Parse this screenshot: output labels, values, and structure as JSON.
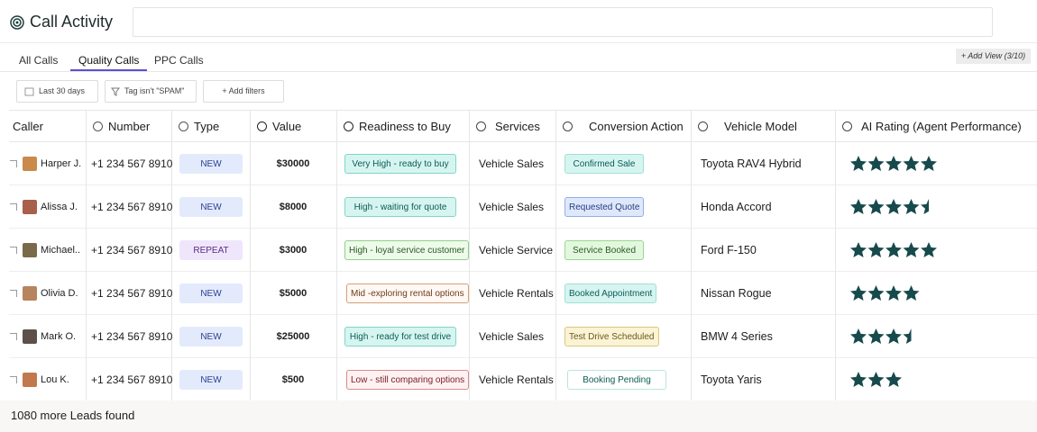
{
  "header": {
    "title": "Call Activity"
  },
  "tabs": [
    {
      "label": "All Calls",
      "active": false
    },
    {
      "label": "Quality Calls",
      "active": true
    },
    {
      "label": "PPC Calls",
      "active": false
    }
  ],
  "add_view": "+ Add View (3/10)",
  "filters": [
    "Last 30 days",
    "Tag isn't \"SPAM\"",
    "+ Add filters"
  ],
  "table": {
    "columns": [
      "Caller",
      "Number",
      "Type",
      "Value",
      "Readiness to Buy",
      "Services",
      "Conversion Action",
      "Vehicle Model",
      "AI Rating (Agent Performance)"
    ],
    "rows": [
      {
        "caller": "Harper J.",
        "number": "+1 234 567 8910",
        "type": "NEW",
        "value": "$30000",
        "readiness": "Very High - ready to buy",
        "service": "Vehicle Sales",
        "conversion": "Confirmed Sale",
        "vehicle": "Toyota RAV4 Hybrid",
        "rating": 5
      },
      {
        "caller": "Alissa J.",
        "number": "+1 234 567 8910",
        "type": "NEW",
        "value": "$8000",
        "readiness": "High - waiting for quote",
        "service": "Vehicle Sales",
        "conversion": "Requested Quote",
        "vehicle": "Honda Accord",
        "rating": 4.5
      },
      {
        "caller": "Michael..",
        "number": "+1 234 567 8910",
        "type": "REPEAT",
        "value": "$3000",
        "readiness": "High - loyal service customer",
        "service": "Vehicle Service",
        "conversion": "Service Booked",
        "vehicle": "Ford F-150",
        "rating": 5
      },
      {
        "caller": "Olivia D.",
        "number": "+1 234 567 8910",
        "type": "NEW",
        "value": "$5000",
        "readiness": "Mid -exploring rental options",
        "service": "Vehicle Rentals",
        "conversion": "Booked Appointment",
        "vehicle": "Nissan Rogue",
        "rating": 4
      },
      {
        "caller": "Mark O.",
        "number": "+1 234 567 8910",
        "type": "NEW",
        "value": "$25000",
        "readiness": "High - ready for test drive",
        "service": "Vehicle Sales",
        "conversion": "Test Drive Scheduled",
        "vehicle": "BMW 4 Series",
        "rating": 3.5
      },
      {
        "caller": "Lou K.",
        "number": "+1 234 567 8910",
        "type": "NEW",
        "value": "$500",
        "readiness": "Low - still comparing options",
        "service": "Vehicle Rentals",
        "conversion": "Booking Pending",
        "vehicle": "Toyota Yaris",
        "rating": 3
      }
    ]
  },
  "footer": "1080 more Leads found"
}
